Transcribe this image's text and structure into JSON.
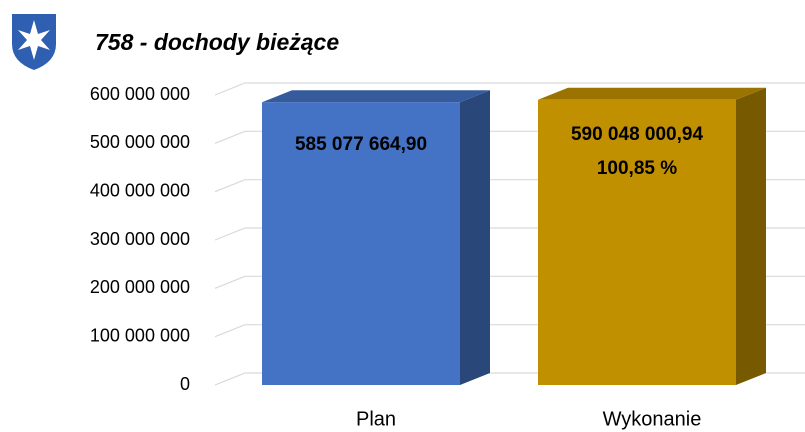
{
  "chart_data": {
    "type": "bar3d",
    "title": "758 - dochody bieżące",
    "categories": [
      "Plan",
      "Wykonanie"
    ],
    "values": [
      585077664.9,
      590048000.94
    ],
    "value_labels": [
      "585 077 664,90",
      "590 048 000,94"
    ],
    "annotation": "100,85 %",
    "colors": [
      "#4472c4",
      "#c09000"
    ],
    "ylim": [
      0,
      600000000
    ],
    "yticks": [
      0,
      {
        "value": 100000000,
        "label": "100 000 000"
      },
      {
        "value": 200000000,
        "label": "200 000 000"
      },
      {
        "value": 300000000,
        "label": "300 000 000"
      },
      {
        "value": 400000000,
        "label": "400 000 000"
      },
      {
        "value": 500000000,
        "label": "500 000 000"
      },
      {
        "value": 600000000,
        "label": "600 000 000"
      }
    ],
    "grid": true
  }
}
